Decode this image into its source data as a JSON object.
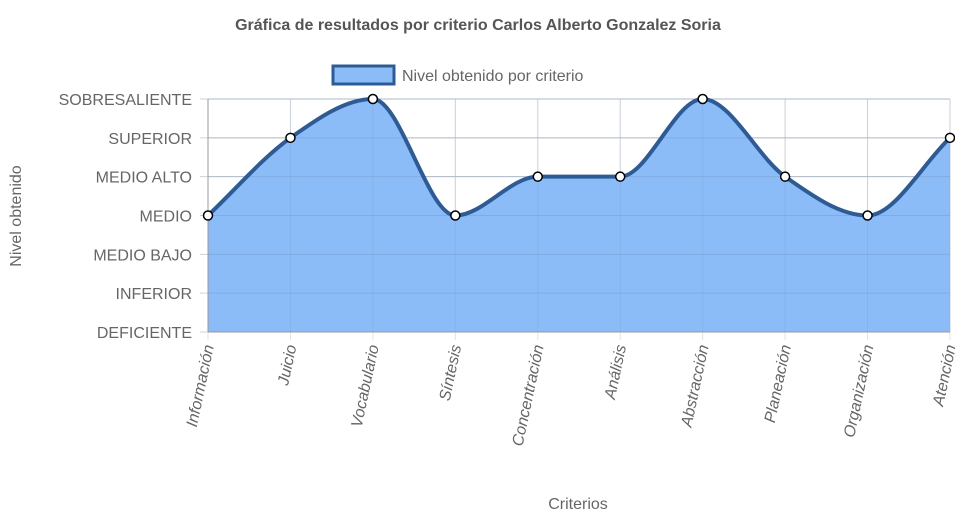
{
  "chart_data": {
    "type": "area",
    "title": "Gráfica de resultados por criterio Carlos Alberto Gonzalez Soria",
    "xlabel": "Criterios",
    "ylabel": "Nivel obtenido",
    "categories": [
      "Información",
      "Juicio",
      "Vocabulario",
      "Síntesis",
      "Concentración",
      "Análisis",
      "Abstracción",
      "Planeación",
      "Organización",
      "Atención"
    ],
    "y_levels": [
      "DEFICIENTE",
      "INFERIOR",
      "MEDIO BAJO",
      "MEDIO",
      "MEDIO ALTO",
      "SUPERIOR",
      "SOBRESALIENTE"
    ],
    "ylim": [
      0,
      6
    ],
    "series": [
      {
        "name": "Nivel obtenido por criterio",
        "values": [
          3,
          5,
          6,
          3,
          4,
          4,
          6,
          4,
          3,
          5
        ],
        "fill_color": "#8bbcf8",
        "line_color": "#2e5b94"
      }
    ],
    "legend_position": "top",
    "grid": true,
    "x_tick_rotation": "vertical"
  }
}
